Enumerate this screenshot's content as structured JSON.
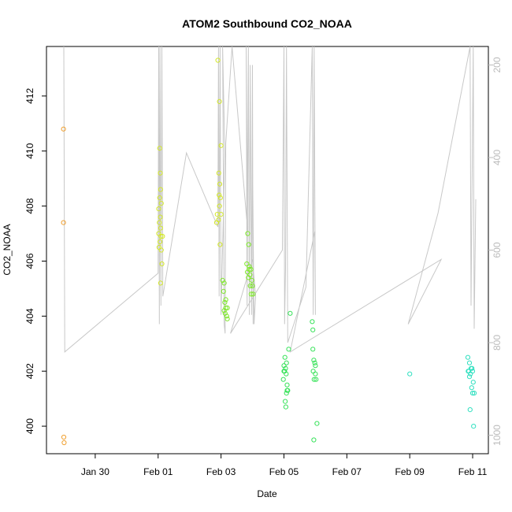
{
  "chart_data": {
    "type": "scatter",
    "title": "ATOM2 Southbound CO2_NOAA",
    "xlabel": "Date",
    "ylabel": "CO2_NOAA",
    "x_ticks": [
      {
        "day": 2,
        "label": "Jan 30"
      },
      {
        "day": 4,
        "label": "Feb 01"
      },
      {
        "day": 6,
        "label": "Feb 03"
      },
      {
        "day": 8,
        "label": "Feb 05"
      },
      {
        "day": 10,
        "label": "Feb 07"
      },
      {
        "day": 12,
        "label": "Feb 09"
      },
      {
        "day": 14,
        "label": "Feb 11"
      }
    ],
    "xlim": [
      0.45,
      14.5
    ],
    "ylim": [
      399.0,
      413.8
    ],
    "y_ticks": [
      400,
      402,
      404,
      406,
      408,
      410,
      412
    ],
    "right_axis": {
      "label": "",
      "range_top_to_bottom": [
        160,
        1040
      ],
      "ticks": [
        200,
        400,
        600,
        800,
        1000
      ],
      "color": "#bbbbbb"
    },
    "series": [
      {
        "color": "#f0a030",
        "points": [
          [
            0.99,
            410.8
          ],
          [
            0.99,
            407.4
          ],
          [
            1.0,
            399.6
          ],
          [
            1.01,
            399.4
          ]
        ]
      },
      {
        "color": "#d4e82a",
        "points": [
          [
            4.05,
            410.1
          ],
          [
            4.07,
            409.2
          ],
          [
            4.05,
            408.3
          ],
          [
            4.1,
            408.1
          ],
          [
            4.02,
            407.9
          ],
          [
            4.07,
            407.6
          ],
          [
            4.04,
            407.4
          ],
          [
            4.08,
            407.2
          ],
          [
            4.02,
            407.0
          ],
          [
            4.09,
            406.9
          ],
          [
            4.06,
            406.7
          ],
          [
            4.03,
            406.5
          ],
          [
            4.1,
            406.4
          ],
          [
            4.12,
            405.9
          ],
          [
            4.08,
            405.2
          ],
          [
            4.08,
            408.6
          ],
          [
            4.14,
            406.9
          ],
          [
            5.9,
            413.3
          ],
          [
            5.95,
            411.8
          ],
          [
            6.0,
            410.2
          ],
          [
            5.93,
            409.2
          ],
          [
            5.96,
            408.8
          ],
          [
            5.94,
            408.4
          ],
          [
            5.98,
            408.3
          ],
          [
            5.88,
            407.7
          ],
          [
            6.0,
            407.7
          ],
          [
            5.92,
            407.5
          ],
          [
            5.86,
            407.4
          ],
          [
            5.97,
            406.6
          ],
          [
            5.95,
            408.0
          ]
        ]
      },
      {
        "color": "#7ee82a",
        "points": [
          [
            6.05,
            405.3
          ],
          [
            6.1,
            405.2
          ],
          [
            6.08,
            404.9
          ],
          [
            6.12,
            404.5
          ],
          [
            6.15,
            404.3
          ],
          [
            6.2,
            404.3
          ],
          [
            6.1,
            404.2
          ],
          [
            6.13,
            404.1
          ],
          [
            6.18,
            404.0
          ],
          [
            6.2,
            403.9
          ],
          [
            6.15,
            404.6
          ],
          [
            6.85,
            407.0
          ],
          [
            6.88,
            406.6
          ],
          [
            6.82,
            405.9
          ],
          [
            6.9,
            405.7
          ],
          [
            6.95,
            405.7
          ],
          [
            6.84,
            405.6
          ],
          [
            6.92,
            405.5
          ],
          [
            6.87,
            405.4
          ],
          [
            6.98,
            405.3
          ],
          [
            6.93,
            405.1
          ],
          [
            7.0,
            405.1
          ],
          [
            6.96,
            404.8
          ],
          [
            7.02,
            404.8
          ],
          [
            6.9,
            405.8
          ]
        ]
      },
      {
        "color": "#38e25a",
        "points": [
          [
            8.03,
            402.5
          ],
          [
            8.0,
            402.2
          ],
          [
            8.08,
            402.3
          ],
          [
            8.05,
            402.1
          ],
          [
            8.02,
            402.0
          ],
          [
            8.07,
            401.9
          ],
          [
            7.98,
            401.7
          ],
          [
            8.1,
            401.5
          ],
          [
            8.12,
            401.3
          ],
          [
            8.08,
            401.2
          ],
          [
            8.04,
            400.9
          ],
          [
            8.06,
            400.7
          ],
          [
            8.15,
            402.8
          ],
          [
            8.2,
            404.1
          ],
          [
            8.0,
            402.0
          ],
          [
            8.1,
            401.3
          ],
          [
            8.9,
            403.8
          ],
          [
            8.92,
            403.5
          ],
          [
            8.92,
            402.8
          ],
          [
            8.95,
            402.4
          ],
          [
            8.98,
            402.3
          ],
          [
            8.93,
            402.0
          ],
          [
            9.0,
            401.9
          ],
          [
            9.02,
            401.7
          ],
          [
            8.96,
            401.7
          ],
          [
            9.05,
            400.1
          ],
          [
            8.95,
            399.5
          ],
          [
            9.0,
            402.2
          ]
        ]
      },
      {
        "color": "#30e0c0",
        "points": [
          [
            12.0,
            401.9
          ],
          [
            13.85,
            402.5
          ],
          [
            13.9,
            402.3
          ],
          [
            13.95,
            402.1
          ],
          [
            13.88,
            402.0
          ],
          [
            14.0,
            402.0
          ],
          [
            13.93,
            401.9
          ],
          [
            13.9,
            401.8
          ],
          [
            14.02,
            401.6
          ],
          [
            13.97,
            401.4
          ],
          [
            14.0,
            401.2
          ],
          [
            14.05,
            401.2
          ],
          [
            13.92,
            400.6
          ],
          [
            14.03,
            400.0
          ],
          [
            13.86,
            402.0
          ],
          [
            13.98,
            402.1
          ]
        ]
      }
    ],
    "pressure_trace": {
      "color": "#c8c8c8",
      "points": [
        [
          1.0,
          160
        ],
        [
          1.03,
          820
        ],
        [
          4.0,
          650
        ],
        [
          4.02,
          160
        ],
        [
          4.04,
          760
        ],
        [
          4.06,
          160
        ],
        [
          4.09,
          720
        ],
        [
          4.12,
          160
        ],
        [
          4.15,
          700
        ],
        [
          4.9,
          390
        ],
        [
          5.9,
          550
        ],
        [
          5.92,
          160
        ],
        [
          5.94,
          700
        ],
        [
          5.97,
          160
        ],
        [
          6.0,
          740
        ],
        [
          6.12,
          390
        ],
        [
          6.05,
          160
        ],
        [
          6.1,
          760
        ],
        [
          6.13,
          780
        ],
        [
          6.15,
          370
        ],
        [
          6.35,
          160
        ],
        [
          6.85,
          560
        ],
        [
          6.8,
          160
        ],
        [
          6.83,
          720
        ],
        [
          6.87,
          160
        ],
        [
          6.9,
          740
        ],
        [
          6.93,
          200
        ],
        [
          6.97,
          740
        ],
        [
          7.0,
          200
        ],
        [
          7.02,
          760
        ],
        [
          7.0,
          390
        ],
        [
          7.05,
          760
        ],
        [
          7.1,
          700
        ],
        [
          7.0,
          620
        ],
        [
          6.3,
          780
        ],
        [
          7.95,
          600
        ],
        [
          8.0,
          160
        ],
        [
          8.02,
          760
        ],
        [
          8.05,
          640
        ],
        [
          8.08,
          160
        ],
        [
          8.12,
          800
        ],
        [
          8.7,
          680
        ],
        [
          8.9,
          160
        ],
        [
          8.93,
          740
        ],
        [
          8.96,
          160
        ],
        [
          9.0,
          740
        ],
        [
          8.98,
          560
        ],
        [
          8.2,
          820
        ],
        [
          13.0,
          620
        ],
        [
          11.95,
          760
        ],
        [
          12.9,
          520
        ],
        [
          13.92,
          160
        ],
        [
          13.95,
          720
        ],
        [
          13.98,
          480
        ],
        [
          14.02,
          160
        ],
        [
          14.05,
          770
        ],
        [
          14.1,
          490
        ]
      ]
    }
  }
}
